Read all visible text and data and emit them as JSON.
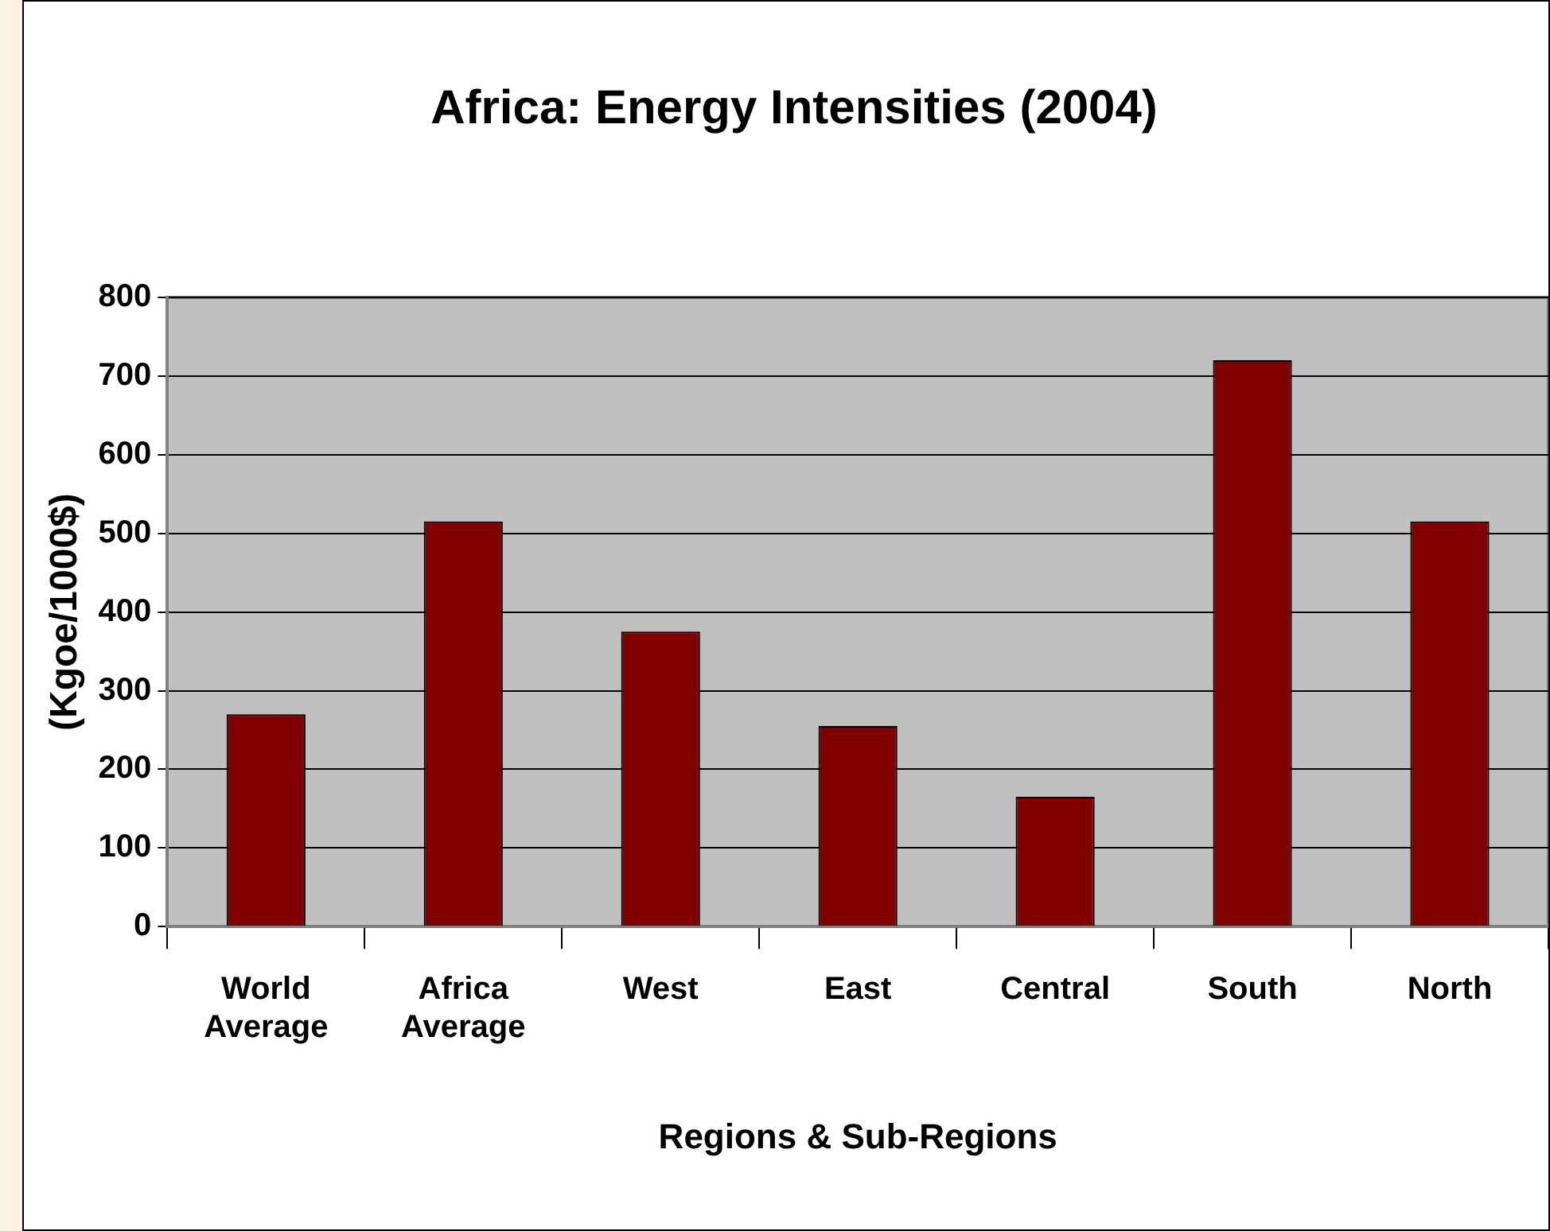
{
  "chart_data": {
    "type": "bar",
    "title": "Africa: Energy Intensities (2004)",
    "xlabel": "Regions & Sub-Regions",
    "ylabel": "(Kgoe/1000$)",
    "categories": [
      "World Average",
      "Africa Average",
      "West",
      "East",
      "Central",
      "South",
      "North"
    ],
    "values": [
      270,
      515,
      375,
      255,
      165,
      720,
      515
    ],
    "color": "#800000",
    "ylim": [
      0,
      800
    ],
    "yticks": [
      0,
      100,
      200,
      300,
      400,
      500,
      600,
      700,
      800
    ],
    "grid": "y",
    "legend": false
  }
}
